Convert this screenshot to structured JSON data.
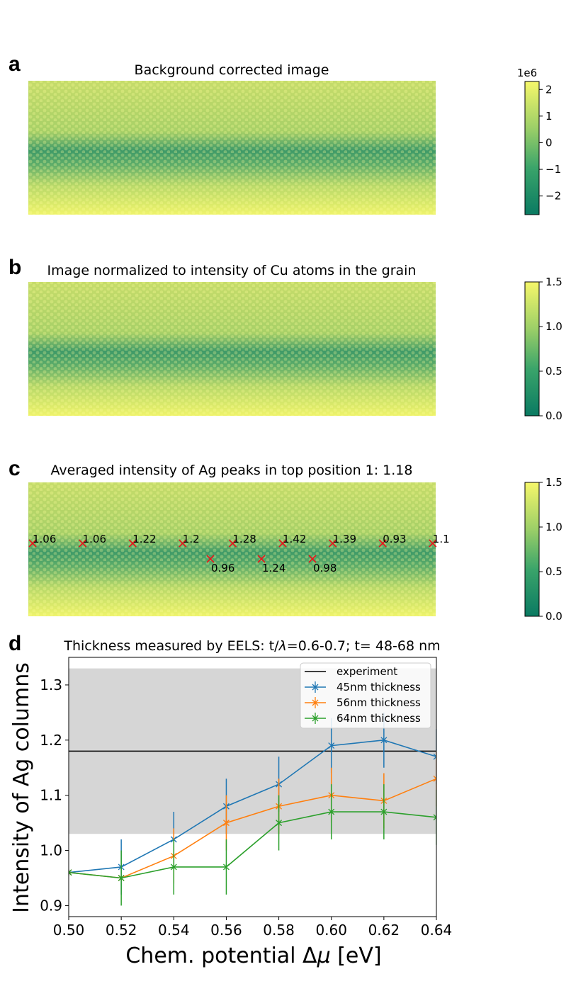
{
  "panels": {
    "a": {
      "letter": "a",
      "title": "Background corrected image",
      "colorbar": {
        "offset_label": "1e6",
        "ticks": [
          2,
          1,
          0,
          -1,
          -2
        ],
        "tick_labels": [
          "2",
          "1",
          "0",
          "−1",
          "−2"
        ],
        "range": [
          -2.7,
          2.3
        ]
      }
    },
    "b": {
      "letter": "b",
      "title": "Image normalized to intensity of Cu atoms in the grain",
      "colorbar": {
        "ticks": [
          1.5,
          1.0,
          0.5,
          0.0
        ],
        "tick_labels": [
          "1.5",
          "1.0",
          "0.5",
          "0.0"
        ],
        "range": [
          0.0,
          1.5
        ]
      }
    },
    "c": {
      "letter": "c",
      "title": "Averaged intensity of Ag peaks in top position 1: 1.18",
      "colorbar": {
        "ticks": [
          1.5,
          1.0,
          0.5,
          0.0
        ],
        "tick_labels": [
          "1.5",
          "1.0",
          "0.5",
          "0.0"
        ],
        "range": [
          0.0,
          1.5
        ]
      },
      "peaks": [
        {
          "label": "1.06",
          "row": "top",
          "col": 0
        },
        {
          "label": "1.06",
          "row": "top",
          "col": 1
        },
        {
          "label": "1.22",
          "row": "top",
          "col": 2
        },
        {
          "label": "1.2",
          "row": "top",
          "col": 3
        },
        {
          "label": "1.28",
          "row": "top",
          "col": 4
        },
        {
          "label": "1.42",
          "row": "top",
          "col": 5
        },
        {
          "label": "1.39",
          "row": "top",
          "col": 6
        },
        {
          "label": "0.93",
          "row": "top",
          "col": 7
        },
        {
          "label": "1.1",
          "row": "top",
          "col": 8
        },
        {
          "label": "0.96",
          "row": "bottom",
          "col": 0
        },
        {
          "label": "1.24",
          "row": "bottom",
          "col": 1
        },
        {
          "label": "0.98",
          "row": "bottom",
          "col": 2
        }
      ]
    },
    "d": {
      "letter": "d"
    }
  },
  "colormap": {
    "low": "#0a7a62",
    "mid": "#7cc36b",
    "high": "#f6f76a"
  },
  "chart_data": {
    "type": "line",
    "title": "Thickness measured by EELS: t/λ=0.6-0.7; t= 48-68 nm",
    "title_parts": {
      "prefix": "Thickness measured by EELS: t/",
      "symbol": "λ",
      "suffix": "=0.6-0.7; t= 48-68 nm"
    },
    "xlabel": "Chem. potential Δμ [eV]",
    "xlabel_parts": {
      "prefix": "Chem. potential Δ",
      "symbol": "μ",
      "suffix": " [eV]"
    },
    "ylabel": "Intensity of Ag columns",
    "xlim": [
      0.5,
      0.64
    ],
    "ylim": [
      0.88,
      1.35
    ],
    "xticks": [
      0.5,
      0.52,
      0.54,
      0.56,
      0.58,
      0.6,
      0.62,
      0.64
    ],
    "xtick_labels": [
      "0.50",
      "0.52",
      "0.54",
      "0.56",
      "0.58",
      "0.60",
      "0.62",
      "0.64"
    ],
    "yticks": [
      0.9,
      1.0,
      1.1,
      1.2,
      1.3
    ],
    "ytick_labels": [
      "0.9",
      "1.0",
      "1.1",
      "1.2",
      "1.3"
    ],
    "x": [
      0.5,
      0.52,
      0.54,
      0.56,
      0.58,
      0.6,
      0.62,
      0.64
    ],
    "experiment": {
      "name": "experiment",
      "value": 1.18,
      "band": [
        1.03,
        1.33
      ],
      "color": "#000000",
      "band_color": "#d6d6d6"
    },
    "series": [
      {
        "name": "45nm thickness",
        "color": "#1f77b4",
        "values": [
          0.96,
          0.97,
          1.02,
          1.08,
          1.12,
          1.19,
          1.2,
          1.17
        ],
        "errors": [
          0.0,
          0.05,
          0.05,
          0.05,
          0.05,
          0.05,
          0.05,
          0.05
        ]
      },
      {
        "name": "56nm thickness",
        "color": "#ff7f0e",
        "values": [
          0.96,
          0.95,
          0.99,
          1.05,
          1.08,
          1.1,
          1.09,
          1.13
        ],
        "errors": [
          0.0,
          0.0,
          0.05,
          0.05,
          0.05,
          0.05,
          0.05,
          0.05
        ]
      },
      {
        "name": "64nm thickness",
        "color": "#2ca02c",
        "values": [
          0.96,
          0.95,
          0.97,
          0.97,
          1.05,
          1.07,
          1.07,
          1.06
        ],
        "errors": [
          0.0,
          0.05,
          0.05,
          0.05,
          0.05,
          0.05,
          0.05,
          0.05
        ]
      }
    ]
  }
}
